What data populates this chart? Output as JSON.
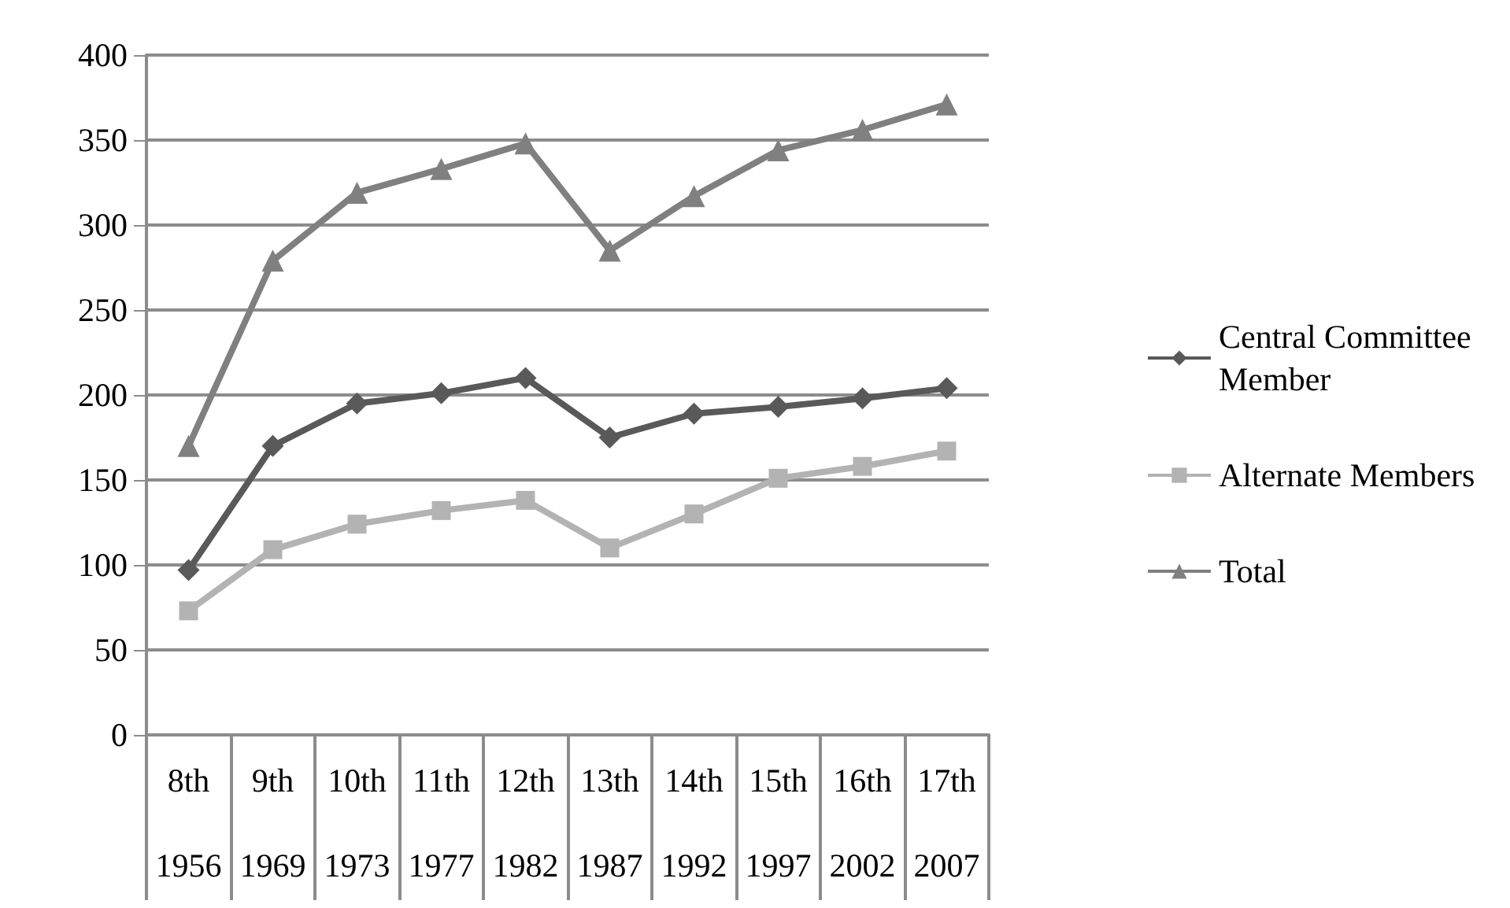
{
  "chart_data": {
    "type": "line",
    "categories": [
      "8th\n1956",
      "9th\n1969",
      "10th\n1973",
      "11th\n1977",
      "12th\n1982",
      "13th\n1987",
      "14th\n1992",
      "15th\n1997",
      "16th\n2002",
      "17th\n2007"
    ],
    "series": [
      {
        "name": "Central Committee Member",
        "color": "#595959",
        "marker": "diamond",
        "values": [
          97,
          170,
          195,
          201,
          210,
          175,
          189,
          193,
          198,
          204
        ]
      },
      {
        "name": "Alternate Members",
        "color": "#b3b3b3",
        "marker": "square",
        "values": [
          73,
          109,
          124,
          132,
          138,
          110,
          130,
          151,
          158,
          167
        ]
      },
      {
        "name": "Total",
        "color": "#808080",
        "marker": "triangle",
        "values": [
          170,
          279,
          319,
          333,
          348,
          285,
          317,
          344,
          356,
          371
        ]
      }
    ],
    "ylim": [
      0,
      400
    ],
    "yticks": [
      0,
      50,
      100,
      150,
      200,
      250,
      300,
      350,
      400
    ],
    "grid": "y",
    "legend": "right"
  }
}
